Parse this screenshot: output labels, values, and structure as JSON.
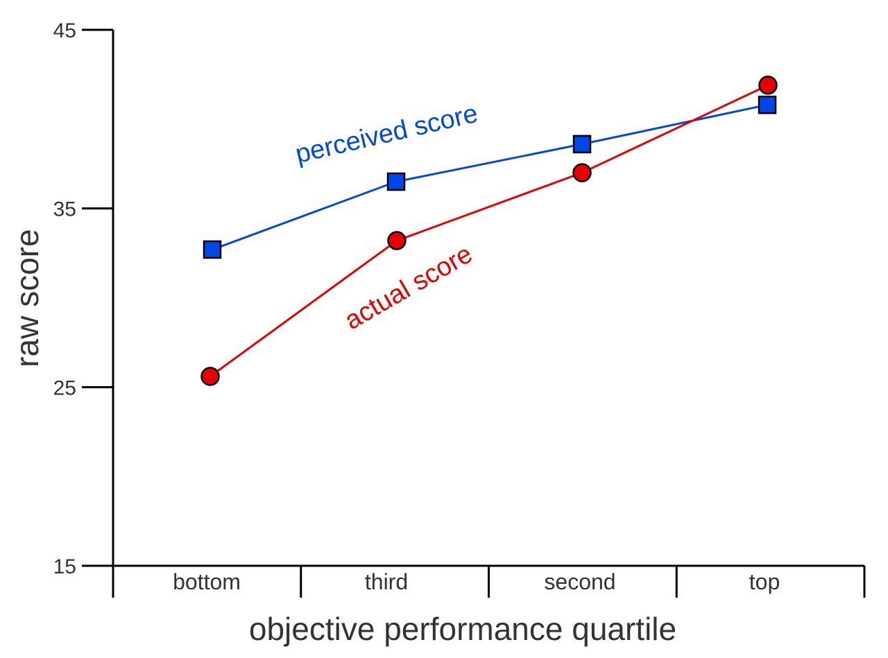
{
  "chart_data": {
    "type": "line",
    "title": "",
    "xlabel": "objective performance quartile",
    "ylabel": "raw score",
    "categories": [
      "bottom",
      "third",
      "second",
      "top"
    ],
    "ylim": [
      15,
      45
    ],
    "yticks": [
      15,
      25,
      35,
      45
    ],
    "grid": false,
    "series": [
      {
        "name": "perceived score",
        "color": "#0047e8",
        "marker": "square",
        "values": [
          32.7,
          36.5,
          38.6,
          40.8
        ]
      },
      {
        "name": "actual score",
        "color": "#e80000",
        "marker": "circle",
        "values": [
          25.6,
          33.2,
          37.0,
          41.9
        ]
      }
    ]
  }
}
